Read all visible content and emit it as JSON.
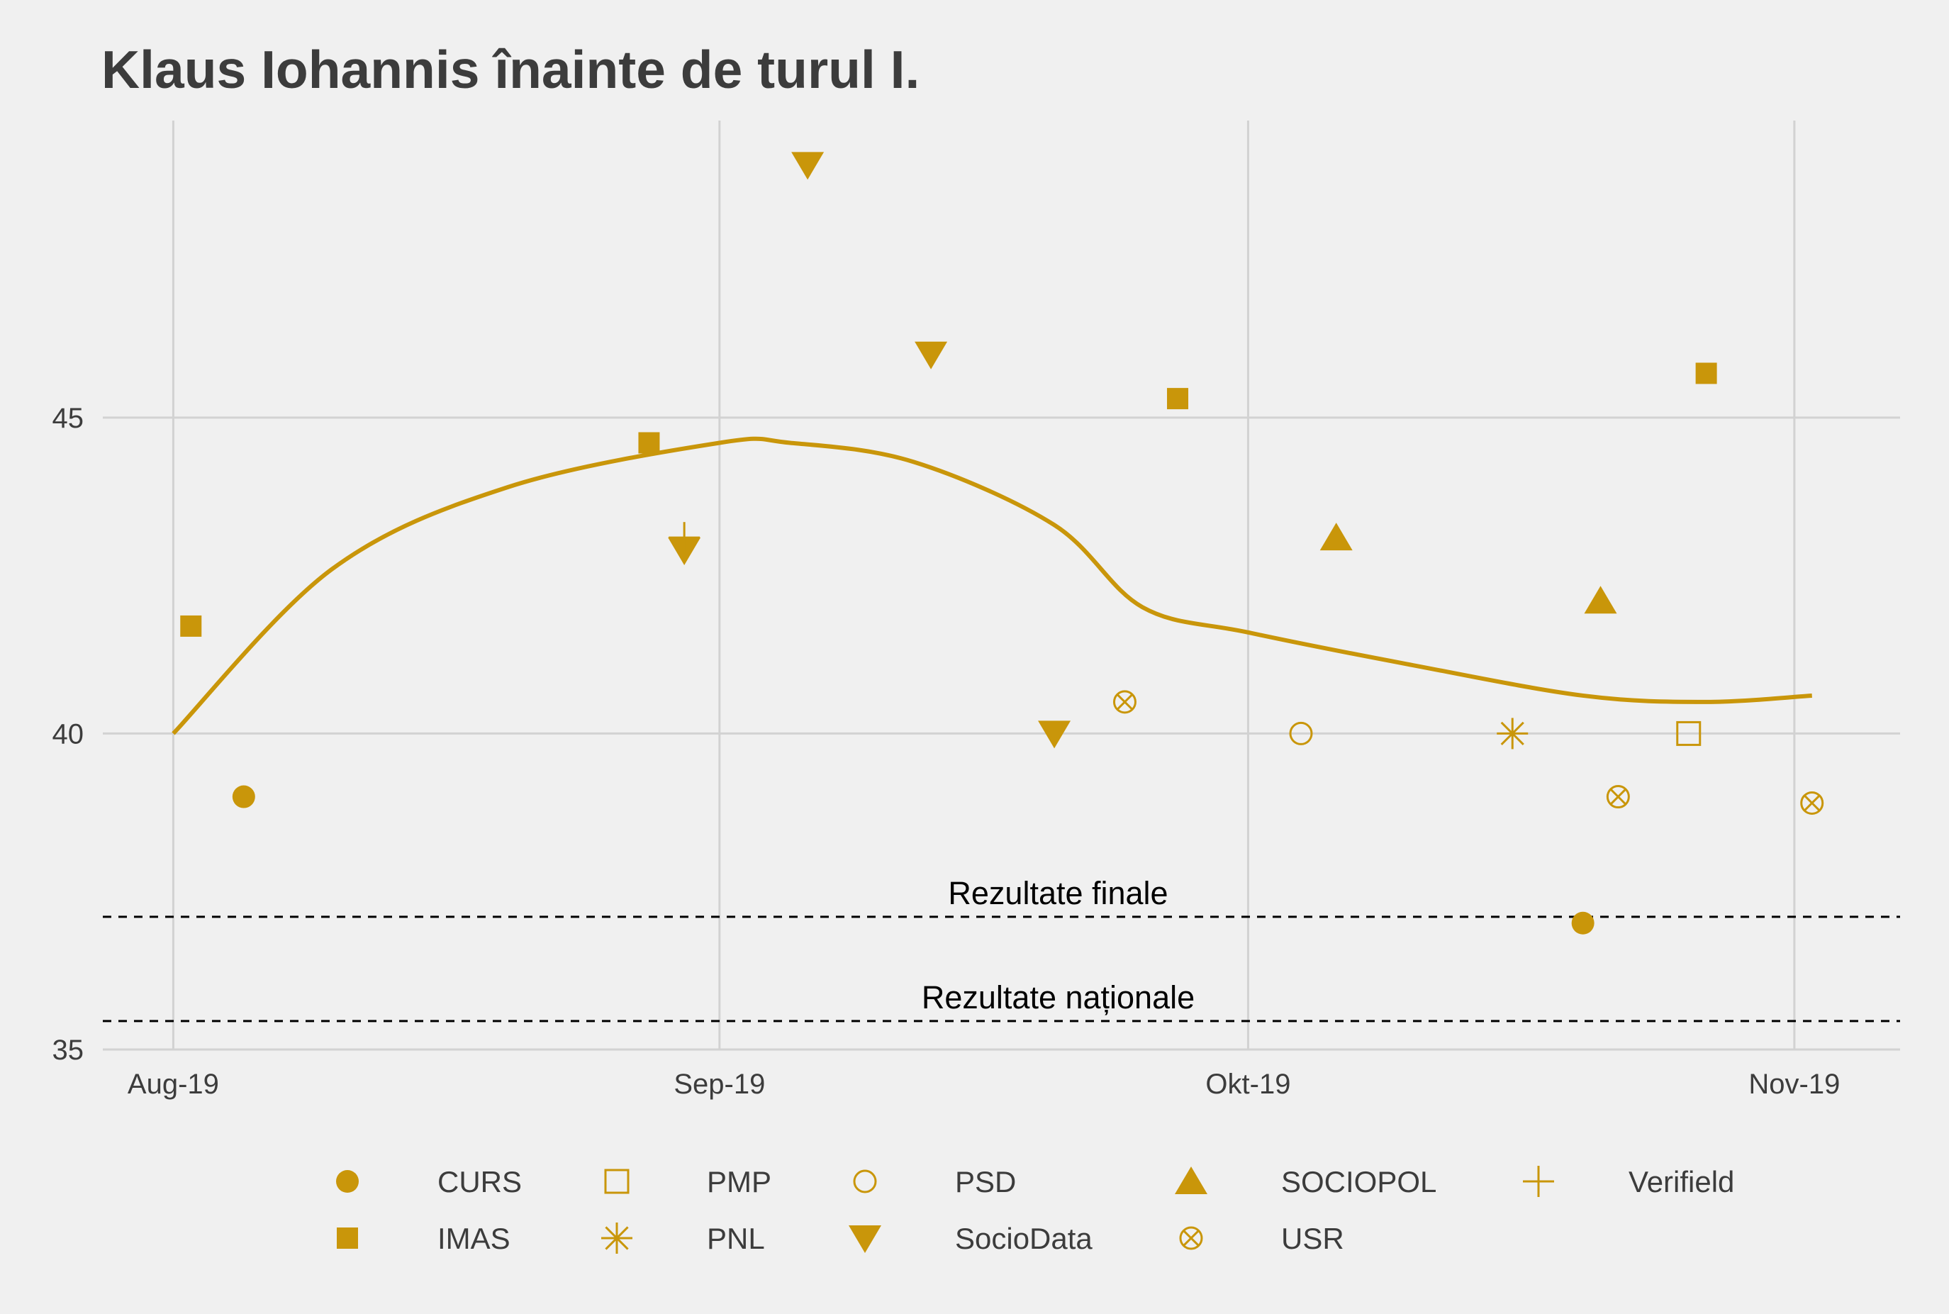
{
  "chart_data": {
    "type": "scatter",
    "title": "Klaus Iohannis înainte de turul I.",
    "xlabel": "",
    "ylabel": "",
    "x_ticks": [
      {
        "date": "2019-08-01",
        "label": "Aug-19"
      },
      {
        "date": "2019-09-01",
        "label": "Sep-19"
      },
      {
        "date": "2019-10-01",
        "label": "Okt-19"
      },
      {
        "date": "2019-11-01",
        "label": "Nov-19"
      }
    ],
    "y_ticks": [
      35,
      40,
      45
    ],
    "xlim": [
      "2019-07-28",
      "2019-11-07"
    ],
    "ylim": [
      35,
      49.7
    ],
    "grid": true,
    "legend_position": "bottom",
    "color": "#c9960a",
    "series": [
      {
        "name": "CURS",
        "marker": "circle-filled",
        "points": [
          [
            "2019-08-05",
            39.0
          ],
          [
            "2019-10-20",
            37.0
          ]
        ]
      },
      {
        "name": "IMAS",
        "marker": "square-filled",
        "points": [
          [
            "2019-08-02",
            41.7
          ],
          [
            "2019-08-28",
            44.6
          ],
          [
            "2019-09-27",
            45.3
          ],
          [
            "2019-10-27",
            45.7
          ]
        ]
      },
      {
        "name": "PMP",
        "marker": "square-open",
        "points": [
          [
            "2019-10-26",
            40.0
          ]
        ]
      },
      {
        "name": "PNL",
        "marker": "asterisk",
        "points": [
          [
            "2019-10-16",
            40.0
          ]
        ]
      },
      {
        "name": "PSD",
        "marker": "circle-open",
        "points": [
          [
            "2019-10-04",
            40.0
          ]
        ]
      },
      {
        "name": "SocioData",
        "marker": "triangle-down-filled",
        "points": [
          [
            "2019-08-30",
            42.9
          ],
          [
            "2019-09-06",
            49.0
          ],
          [
            "2019-09-13",
            46.0
          ],
          [
            "2019-09-20",
            40.0
          ]
        ]
      },
      {
        "name": "SOCIOPOL",
        "marker": "triangle-up-filled",
        "points": [
          [
            "2019-10-06",
            43.1
          ],
          [
            "2019-10-21",
            42.1
          ]
        ]
      },
      {
        "name": "USR",
        "marker": "circle-cross",
        "points": [
          [
            "2019-09-24",
            40.5
          ],
          [
            "2019-10-22",
            39.0
          ],
          [
            "2019-11-02",
            38.9
          ]
        ]
      },
      {
        "name": "Verifield",
        "marker": "plus",
        "points": [
          [
            "2019-08-30",
            43.1
          ]
        ]
      }
    ],
    "smooth_line": [
      [
        "2019-08-01",
        40.0
      ],
      [
        "2019-08-10",
        42.6
      ],
      [
        "2019-08-20",
        43.9
      ],
      [
        "2019-09-01",
        44.6
      ],
      [
        "2019-09-05",
        44.6
      ],
      [
        "2019-09-12",
        44.3
      ],
      [
        "2019-09-20",
        43.3
      ],
      [
        "2019-09-25",
        42.0
      ],
      [
        "2019-10-01",
        41.6
      ],
      [
        "2019-10-10",
        41.1
      ],
      [
        "2019-10-20",
        40.6
      ],
      [
        "2019-10-27",
        40.5
      ],
      [
        "2019-11-02",
        40.6
      ]
    ],
    "reference_lines": [
      {
        "label": "Rezultate finale",
        "value": 37.1
      },
      {
        "label": "Rezultate naționale",
        "value": 35.45
      }
    ]
  }
}
